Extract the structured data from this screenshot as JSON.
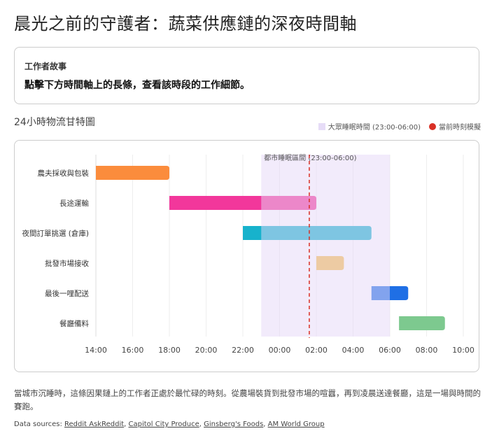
{
  "title": "晨光之前的守護者：蔬菜供應鏈的深夜時間軸",
  "intro": {
    "label": "工作者故事",
    "text": "點擊下方時間軸上的長條，查看該時段的工作細節。"
  },
  "section_title": "24小時物流甘特圖",
  "legend": {
    "sleep": "大眾睡眠時間 (23:00-06:00)",
    "now": "當前時刻模擬"
  },
  "colors": {
    "sleep_band": "#efe6fb",
    "now_line": "#d93025"
  },
  "chart_data": {
    "type": "gantt",
    "xrange": [
      "14:00",
      "10:00 (+1)"
    ],
    "xticks": [
      "14:00",
      "16:00",
      "18:00",
      "20:00",
      "22:00",
      "00:00",
      "02:00",
      "04:00",
      "06:00",
      "08:00",
      "10:00"
    ],
    "grid": true,
    "band": {
      "label": "都市睡眠區間 (23:00-06:00)",
      "start": "23:00",
      "end": "06:00"
    },
    "now_marker": "01:37",
    "tasks": [
      {
        "name": "農夫採收與包裝",
        "start": "14:00",
        "end": "18:00",
        "color": "#fb8c3c"
      },
      {
        "name": "長途運輸",
        "start": "18:00",
        "end": "02:00",
        "color": "#f2379b"
      },
      {
        "name": "夜間訂單挑選 (倉庫)",
        "start": "22:00",
        "end": "05:00",
        "color": "#17b2cc"
      },
      {
        "name": "批發市場接收",
        "start": "02:00",
        "end": "03:30",
        "color": "#f4bf4f"
      },
      {
        "name": "最後一哩配送",
        "start": "05:00",
        "end": "07:00",
        "color": "#1f6fe5"
      },
      {
        "name": "餐廳備料",
        "start": "06:30",
        "end": "09:00",
        "color": "#7dc98f"
      }
    ]
  },
  "description": "當城市沉睡時，這條因果鏈上的工作者正處於最忙碌的時刻。從農場裝貨到批發市場的喧囂，再到凌晨送達餐廳，這是一場與時間的賽跑。",
  "sources": {
    "prefix": "Data sources: ",
    "links": [
      "Reddit AskReddit",
      "Capitol City Produce",
      "Ginsberg's Foods",
      "AM World Group"
    ]
  }
}
